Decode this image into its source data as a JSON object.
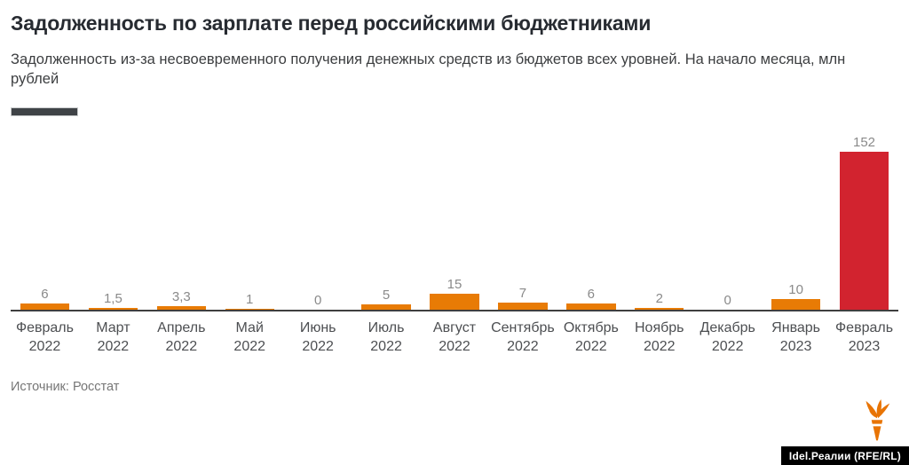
{
  "header": {
    "title": "Задолженность по зарплате перед российскими бюджетниками",
    "subtitle": "Задолженность из-за несвоевременного получения денежных средств из бюджетов всех уровней. На начало месяца, млн рублей"
  },
  "chart_data": {
    "type": "bar",
    "title": "Задолженность по зарплате перед российскими бюджетниками",
    "subtitle": "Задолженность из-за несвоевременного получения денежных средств из бюджетов всех уровней. На начало месяца, млн рублей",
    "categories": [
      "Февраль 2022",
      "Март 2022",
      "Апрель 2022",
      "Май 2022",
      "Июнь 2022",
      "Июль 2022",
      "Август 2022",
      "Сентябрь 2022",
      "Октябрь 2022",
      "Ноябрь 2022",
      "Декабрь 2022",
      "Январь 2023",
      "Февраль 2023"
    ],
    "category_lines": [
      [
        "Февраль",
        "2022"
      ],
      [
        "Март",
        "2022"
      ],
      [
        "Апрель",
        "2022"
      ],
      [
        "Май",
        "2022"
      ],
      [
        "Июнь",
        "2022"
      ],
      [
        "Июль",
        "2022"
      ],
      [
        "Август",
        "2022"
      ],
      [
        "Сентябрь",
        "2022"
      ],
      [
        "Октябрь",
        "2022"
      ],
      [
        "Ноябрь",
        "2022"
      ],
      [
        "Декабрь",
        "2022"
      ],
      [
        "Январь",
        "2023"
      ],
      [
        "Февраль",
        "2023"
      ]
    ],
    "values": [
      6,
      1.5,
      3.3,
      1,
      0,
      5,
      15,
      7,
      6,
      2,
      0,
      10,
      152
    ],
    "value_labels": [
      "6",
      "1,5",
      "3,3",
      "1",
      "0",
      "5",
      "15",
      "7",
      "6",
      "2",
      "0",
      "10",
      "152"
    ],
    "xlabel": "",
    "ylabel": "млн рублей",
    "ylim": [
      0,
      160
    ],
    "grid": false,
    "legend_position": "none",
    "bar_color": "#e87b05",
    "highlight_color": "#d2232f",
    "highlight_index": 12,
    "axis_color": "#3f3f3f",
    "value_label_color": "#8a8a8a",
    "tick_label_color": "#4d4f52"
  },
  "footer": {
    "source": "Источник: Росстат",
    "credit": "Idel.Реалии (RFE/RL)"
  },
  "icons": {
    "logo": "rfe-rl-torch-icon",
    "logo_color": "#e87405"
  }
}
